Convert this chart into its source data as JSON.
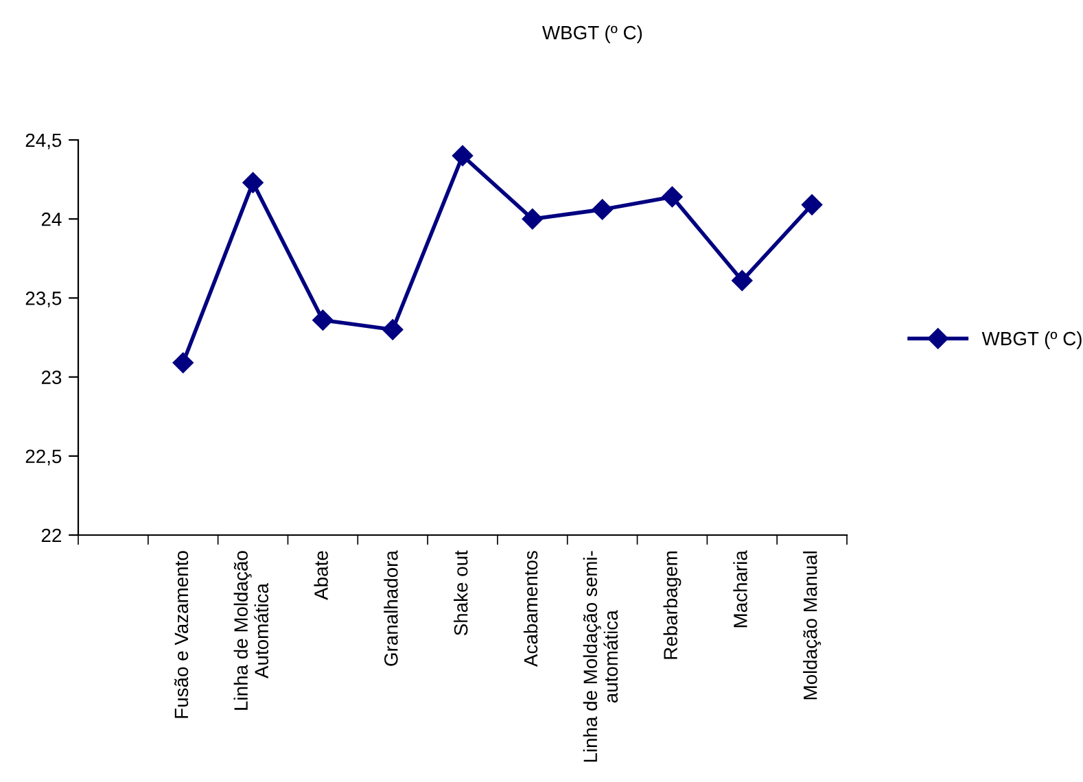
{
  "chart_data": {
    "type": "line",
    "title": "WBGT (º C)",
    "categories": [
      null,
      "Fusão e Vazamento",
      "Linha de Moldação\nAutomática",
      "Abate",
      "Granalhadora",
      "Shake out",
      "Acabamentos",
      "Linha de Moldação semi-\nautomática",
      "Rebarbagem",
      "Macharia",
      "Moldação Manual"
    ],
    "series": [
      {
        "name": "WBGT (º C)",
        "color": "#000080",
        "values": [
          null,
          23.09,
          24.23,
          23.36,
          23.3,
          24.4,
          24.0,
          24.06,
          24.14,
          23.61,
          24.09
        ]
      }
    ],
    "ylim": [
      22,
      24.5
    ],
    "yticks": [
      22,
      {
        "value": 22.5,
        "label": "22,5"
      },
      23,
      {
        "value": 23.5,
        "label": "23,5"
      },
      24,
      {
        "value": 24.5,
        "label": "24,5"
      }
    ],
    "grid": false,
    "legend": "right",
    "marker": "diamond",
    "line_style": "solid"
  }
}
